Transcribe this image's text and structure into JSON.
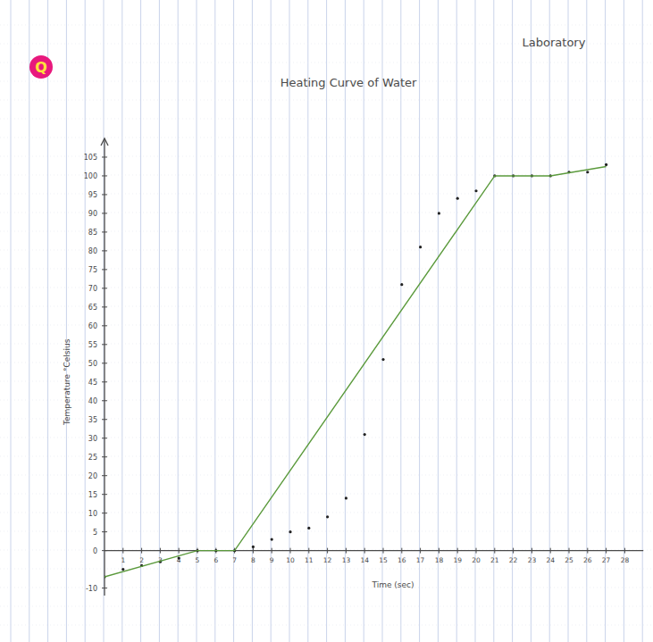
{
  "badge": "Q",
  "header": "Laboratory",
  "chart_data": {
    "type": "scatter",
    "title": "Heating Curve of Water",
    "x_label": "Time (sec)",
    "y_label": "Temperature °Celsius",
    "xlim": [
      0,
      29
    ],
    "ylim": [
      -12,
      110
    ],
    "xticks": [
      1,
      2,
      3,
      4,
      5,
      6,
      7,
      8,
      9,
      10,
      11,
      12,
      13,
      14,
      15,
      16,
      17,
      18,
      19,
      20,
      21,
      22,
      23,
      24,
      25,
      26,
      27,
      28
    ],
    "yticks": [
      -10,
      0,
      5,
      10,
      15,
      20,
      25,
      30,
      35,
      40,
      45,
      50,
      55,
      60,
      65,
      70,
      75,
      80,
      85,
      90,
      95,
      100,
      105
    ],
    "grid": false,
    "series": [
      {
        "type": "scatter",
        "color": "#222222",
        "marker": "circle",
        "x": [
          0,
          1,
          2,
          3,
          4,
          5,
          6,
          7,
          8,
          9,
          10,
          11,
          12,
          13,
          14,
          15,
          16,
          17,
          18,
          19,
          20,
          21,
          22,
          23,
          24,
          25,
          26,
          27
        ],
        "values": [
          -7,
          -5,
          -4,
          -3,
          -2,
          0,
          0,
          0,
          1,
          3,
          5,
          6,
          9,
          14,
          31,
          51,
          71,
          81,
          90,
          94,
          96,
          100,
          100,
          100,
          100,
          101,
          101,
          103
        ]
      },
      {
        "type": "line",
        "color": "#5b9a3c",
        "line_style": "solid",
        "x": [
          0,
          5,
          7,
          21,
          24,
          27
        ],
        "values": [
          -7,
          0,
          0,
          100,
          100,
          102.5
        ]
      }
    ]
  }
}
